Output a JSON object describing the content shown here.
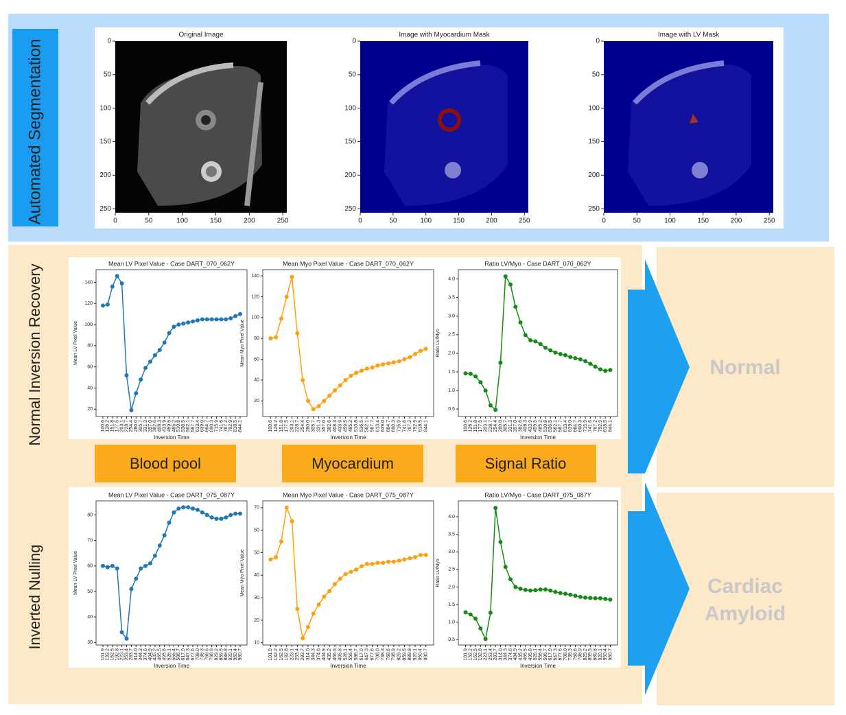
{
  "segmentation": {
    "label": "Automated  Segmentation",
    "panels": [
      {
        "title": "Original Image"
      },
      {
        "title": "Image with Myocardium Mask"
      },
      {
        "title": "Image with LV Mask"
      }
    ],
    "ticks": [
      0,
      50,
      100,
      150,
      200,
      250
    ]
  },
  "rows": [
    {
      "label": "Normal Inversion Recovery",
      "x_label": "Inversion Time",
      "categories": [
        "100.6",
        "126.2",
        "151.8",
        "177.5",
        "203.1",
        "228.7",
        "254.4",
        "280.0",
        "305.7",
        "331.3",
        "357.0",
        "382.6",
        "408.3",
        "433.9",
        "459.5",
        "485.2",
        "510.8",
        "536.5",
        "562.1",
        "587.7",
        "613.4",
        "639.0",
        "664.7",
        "690.3",
        "715.9",
        "741.6",
        "767.2",
        "792.9",
        "818.5",
        "844.1"
      ],
      "charts": [
        {
          "type": "line",
          "title": "Mean LV Pixel Value - Case DART_070_062Y",
          "y_label": "Mean LV Pixel Value",
          "color": "#1f77b4",
          "values": [
            118,
            119,
            136,
            146,
            139,
            52,
            19,
            35,
            48,
            59,
            65,
            71,
            76,
            83,
            92,
            98,
            100,
            101,
            102,
            103,
            104,
            105,
            105,
            105,
            105,
            105,
            105,
            106,
            108,
            110
          ],
          "ylim": [
            13,
            152
          ],
          "yticks": [
            20,
            40,
            60,
            80,
            100,
            120,
            140
          ]
        },
        {
          "type": "line",
          "title": "Mean Myo Pixel Value - Case DART_070_062Y",
          "y_label": "Mean Myo Pixel Value",
          "color": "#ff9f0e",
          "values": [
            80,
            81,
            99,
            120,
            139,
            85,
            40,
            20,
            12,
            15,
            20,
            25,
            30,
            35,
            40,
            44,
            47,
            49,
            51,
            52,
            54,
            55,
            56,
            57,
            58,
            60,
            62,
            65,
            68,
            70
          ],
          "ylim": [
            5,
            146
          ],
          "yticks": [
            20,
            40,
            60,
            80,
            100,
            120,
            140
          ]
        },
        {
          "type": "line",
          "title": "Ratio LV/Myo - Case DART_070_062Y",
          "y_label": "Ratio LV/Myo",
          "color": "#168a16",
          "values": [
            1.46,
            1.45,
            1.38,
            1.22,
            1.0,
            0.6,
            0.48,
            1.75,
            4.07,
            3.85,
            3.25,
            2.83,
            2.49,
            2.35,
            2.32,
            2.25,
            2.15,
            2.08,
            2.02,
            1.98,
            1.95,
            1.9,
            1.87,
            1.84,
            1.79,
            1.72,
            1.64,
            1.57,
            1.53,
            1.55
          ],
          "ylim": [
            0.3,
            4.25
          ],
          "yticks": [
            0.5,
            {
              "value": 1,
              "label": "1.0"
            },
            1.5,
            {
              "value": 2,
              "label": "2.0"
            },
            2.5,
            {
              "value": 3,
              "label": "3.0"
            },
            3.5,
            {
              "value": 4,
              "label": "4.0"
            }
          ]
        }
      ]
    },
    {
      "label": "Inverted Nulling",
      "x_label": "Inversion Time",
      "categories": [
        "101.9",
        "132.2",
        "162.5",
        "192.8",
        "223.1",
        "253.4",
        "283.7",
        "314.0",
        "344.3",
        "374.6",
        "404.9",
        "435.2",
        "465.5",
        "495.8",
        "526.1",
        "556.4",
        "586.7",
        "617.0",
        "647.3",
        "677.6",
        "708.0",
        "738.3",
        "768.6",
        "798.9",
        "829.2",
        "859.5",
        "889.8",
        "920.1",
        "950.4",
        "980.7"
      ],
      "charts": [
        {
          "type": "line",
          "title": "Mean LV Pixel Value - Case DART_075_087Y",
          "y_label": "Mean LV Pixel Value",
          "color": "#1f77b4",
          "values": [
            60,
            59.5,
            60,
            59,
            34,
            31.5,
            51,
            55,
            59,
            60,
            61,
            64,
            68,
            72,
            77,
            81,
            82.5,
            83,
            83,
            82.5,
            82,
            81,
            80,
            79,
            78.5,
            78.5,
            79,
            80,
            80.5,
            80.5
          ],
          "ylim": [
            29,
            85.5
          ],
          "yticks": [
            30,
            40,
            50,
            60,
            70,
            80
          ]
        },
        {
          "type": "line",
          "title": "Mean Myo Pixel Value - Case DART_075_087Y",
          "y_label": "Mean Myo Pixel Value",
          "color": "#ff9f0e",
          "values": [
            47,
            48,
            55,
            70,
            64,
            25,
            12,
            17,
            23,
            27,
            30.5,
            33,
            36,
            38.5,
            40.5,
            41.5,
            42.5,
            44,
            45,
            45,
            45.5,
            45.5,
            46,
            46,
            46.5,
            47,
            47.5,
            48,
            49,
            49
          ],
          "ylim": [
            9,
            73
          ],
          "yticks": [
            10,
            20,
            30,
            40,
            50,
            60,
            70
          ]
        },
        {
          "type": "line",
          "title": "Ratio LV/Myo - Case DART_075_087Y",
          "y_label": "Ratio LV/Myo",
          "color": "#168a16",
          "values": [
            1.28,
            1.22,
            1.1,
            0.82,
            0.52,
            1.27,
            4.25,
            3.28,
            2.57,
            2.22,
            2.0,
            1.95,
            1.92,
            1.9,
            1.91,
            1.93,
            1.93,
            1.9,
            1.86,
            1.83,
            1.81,
            1.78,
            1.75,
            1.72,
            1.7,
            1.69,
            1.68,
            1.68,
            1.66,
            1.64
          ],
          "ylim": [
            0.35,
            4.45
          ],
          "yticks": [
            0.5,
            {
              "value": 1,
              "label": "1.0"
            },
            1.5,
            {
              "value": 2,
              "label": "2.0"
            },
            2.5,
            {
              "value": 3,
              "label": "3.0"
            },
            3.5,
            {
              "value": 4,
              "label": "4.0"
            }
          ]
        }
      ]
    }
  ],
  "region_labels": [
    "Blood pool",
    "Myocardium",
    "Signal Ratio"
  ],
  "outcomes": [
    {
      "lines": [
        "Normal"
      ]
    },
    {
      "lines": [
        "Cardiac",
        "Amyloid"
      ]
    }
  ]
}
